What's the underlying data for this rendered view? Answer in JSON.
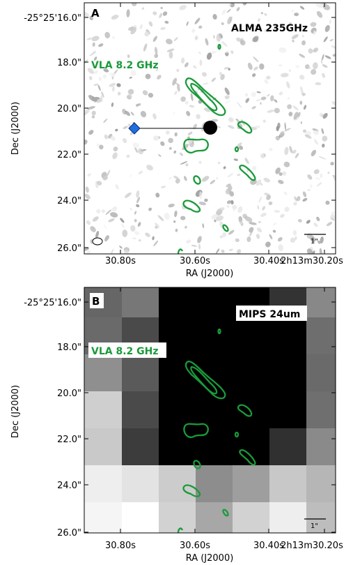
{
  "panels": [
    {
      "tag": "A",
      "band_label": "ALMA 235GHz",
      "overlay_label": "VLA 8.2 GHz",
      "scale_label": "1\"",
      "xlabel": "RA (J2000)",
      "ylabel": "Dec (J2000)",
      "x_ticks": [
        "30.80s",
        "30.60s",
        "30.40s",
        "2h13m30.20s"
      ],
      "y_ticks": [
        "-25°25'16.0\"",
        "18.0\"",
        "20.0\"",
        "22.0\"",
        "24.0\"",
        "26.0\""
      ]
    },
    {
      "tag": "B",
      "band_label": "MIPS 24um",
      "overlay_label": "VLA 8.2 GHz",
      "scale_label": "1\"",
      "xlabel": "RA (J2000)",
      "ylabel": "Dec (J2000)",
      "x_ticks": [
        "30.80s",
        "30.60s",
        "30.40s",
        "2h13m30.20s"
      ],
      "y_ticks": [
        "-25°25'16.0\"",
        "18.0\"",
        "20.0\"",
        "22.0\"",
        "24.0\"",
        "26.0\""
      ]
    }
  ],
  "colors": {
    "contour": "#1a9a3a",
    "marker": "#1f6fe0"
  },
  "icons": {
    "marker": "diamond-marker-icon",
    "beam": "beam-ellipse-icon"
  }
}
